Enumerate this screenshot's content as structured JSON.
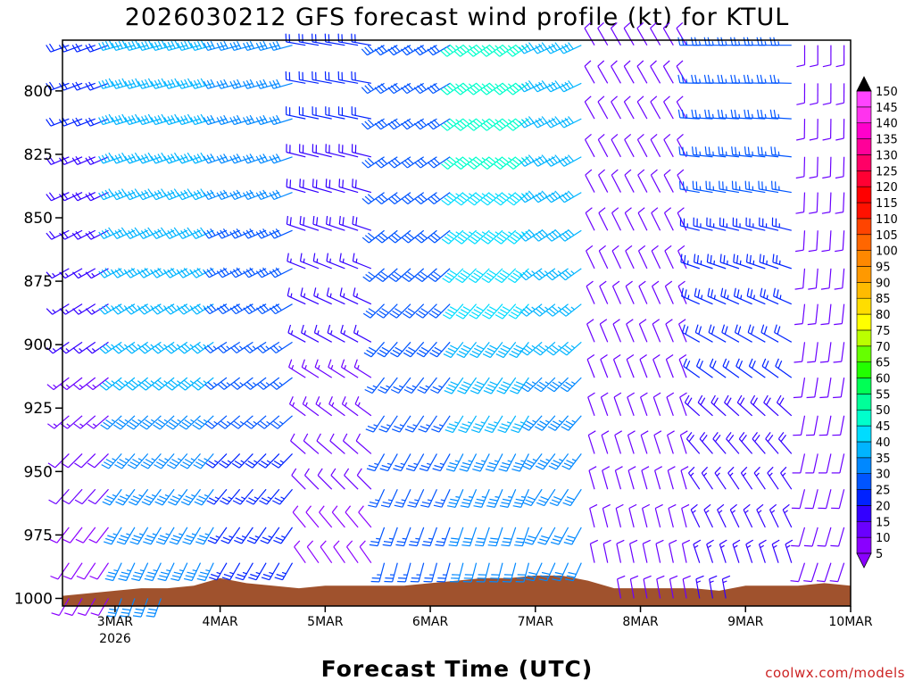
{
  "chart_data": {
    "type": "wind_barb_profile",
    "title": "2026030212 GFS forecast wind profile (kt) for KTUL",
    "xlabel": "Forecast Time (UTC)",
    "ylabel": "",
    "units": "kt",
    "x_ticks": [
      "3MAR",
      "4MAR",
      "5MAR",
      "6MAR",
      "7MAR",
      "8MAR",
      "9MAR",
      "10MAR"
    ],
    "x_year_label": "2026",
    "xlim_days": [
      2.5,
      10.0
    ],
    "y_ticks": [
      800,
      825,
      850,
      875,
      900,
      925,
      950,
      975,
      1000
    ],
    "ylim_hpa": [
      780,
      1003
    ],
    "barb_levels_hpa": [
      782,
      797,
      811,
      826,
      840,
      855,
      870,
      884,
      899,
      913,
      928,
      943,
      957,
      972,
      986,
      1000
    ],
    "colorbar_ticks": [
      5,
      10,
      15,
      20,
      25,
      30,
      35,
      40,
      45,
      50,
      55,
      60,
      65,
      70,
      75,
      80,
      85,
      90,
      95,
      100,
      105,
      110,
      115,
      120,
      125,
      130,
      135,
      140,
      145,
      150
    ],
    "colorbar_colors": [
      "#8a00ff",
      "#6a00ff",
      "#3300ff",
      "#0022ff",
      "#0055ff",
      "#0088ff",
      "#00b4ff",
      "#00dcff",
      "#00ffcc",
      "#00ff99",
      "#00ff55",
      "#22ff00",
      "#66ff00",
      "#bbff00",
      "#ffff00",
      "#ffdd00",
      "#ffbb00",
      "#ff9900",
      "#ff8800",
      "#ff6600",
      "#ff4400",
      "#ff1100",
      "#ff0000",
      "#ff0033",
      "#ff0066",
      "#ff0099",
      "#ff00cc",
      "#ff33ee",
      "#ff44ff"
    ],
    "terrain_color": "#a0522d",
    "terrain": [
      {
        "day": 2.5,
        "sfc_hpa": 999
      },
      {
        "day": 2.75,
        "sfc_hpa": 998
      },
      {
        "day": 3.0,
        "sfc_hpa": 997
      },
      {
        "day": 3.25,
        "sfc_hpa": 996
      },
      {
        "day": 3.5,
        "sfc_hpa": 996
      },
      {
        "day": 3.75,
        "sfc_hpa": 995
      },
      {
        "day": 4.0,
        "sfc_hpa": 992
      },
      {
        "day": 4.25,
        "sfc_hpa": 994
      },
      {
        "day": 4.5,
        "sfc_hpa": 995
      },
      {
        "day": 4.75,
        "sfc_hpa": 996
      },
      {
        "day": 5.0,
        "sfc_hpa": 995
      },
      {
        "day": 5.25,
        "sfc_hpa": 995
      },
      {
        "day": 5.5,
        "sfc_hpa": 995
      },
      {
        "day": 5.75,
        "sfc_hpa": 995
      },
      {
        "day": 6.0,
        "sfc_hpa": 994
      },
      {
        "day": 6.25,
        "sfc_hpa": 993
      },
      {
        "day": 6.5,
        "sfc_hpa": 992
      },
      {
        "day": 6.75,
        "sfc_hpa": 992
      },
      {
        "day": 7.0,
        "sfc_hpa": 991
      },
      {
        "day": 7.25,
        "sfc_hpa": 991
      },
      {
        "day": 7.5,
        "sfc_hpa": 993
      },
      {
        "day": 7.75,
        "sfc_hpa": 996
      },
      {
        "day": 8.0,
        "sfc_hpa": 996
      },
      {
        "day": 8.25,
        "sfc_hpa": 996
      },
      {
        "day": 8.5,
        "sfc_hpa": 996
      },
      {
        "day": 8.75,
        "sfc_hpa": 997
      },
      {
        "day": 9.0,
        "sfc_hpa": 995
      },
      {
        "day": 9.25,
        "sfc_hpa": 995
      },
      {
        "day": 9.5,
        "sfc_hpa": 995
      },
      {
        "day": 9.75,
        "sfc_hpa": 994
      },
      {
        "day": 10.0,
        "sfc_hpa": 995
      }
    ],
    "wind_regimes": [
      {
        "start_day": 2.5,
        "end_day": 3.0,
        "direction_deg": 250,
        "lower_direction_deg": 210,
        "speed_kt": 22,
        "lower_speed_kt": 8
      },
      {
        "start_day": 3.0,
        "end_day": 4.0,
        "direction_deg": 255,
        "lower_direction_deg": 200,
        "speed_kt": 40,
        "lower_speed_kt": 32
      },
      {
        "start_day": 4.0,
        "end_day": 4.75,
        "direction_deg": 255,
        "lower_direction_deg": 205,
        "speed_kt": 32,
        "lower_speed_kt": 22
      },
      {
        "start_day": 4.75,
        "end_day": 5.5,
        "direction_deg": 280,
        "lower_direction_deg": 330,
        "speed_kt": 22,
        "lower_speed_kt": 8
      },
      {
        "start_day": 5.5,
        "end_day": 6.25,
        "direction_deg": 240,
        "lower_direction_deg": 190,
        "speed_kt": 30,
        "lower_speed_kt": 25
      },
      {
        "start_day": 6.25,
        "end_day": 7.0,
        "direction_deg": 235,
        "lower_direction_deg": 190,
        "speed_kt": 48,
        "lower_speed_kt": 30
      },
      {
        "start_day": 7.0,
        "end_day": 7.5,
        "direction_deg": 245,
        "lower_direction_deg": 200,
        "speed_kt": 40,
        "lower_speed_kt": 30
      },
      {
        "start_day": 7.5,
        "end_day": 8.5,
        "direction_deg": 330,
        "lower_direction_deg": 350,
        "speed_kt": 10,
        "lower_speed_kt": 10
      },
      {
        "start_day": 8.5,
        "end_day": 9.5,
        "direction_deg": 270,
        "lower_direction_deg": 350,
        "speed_kt": 28,
        "lower_speed_kt": 15
      },
      {
        "start_day": 9.5,
        "end_day": 10.0,
        "direction_deg": 180,
        "lower_direction_deg": 200,
        "speed_kt": 10,
        "lower_speed_kt": 10
      }
    ]
  },
  "credit": "coolwx.com/models"
}
